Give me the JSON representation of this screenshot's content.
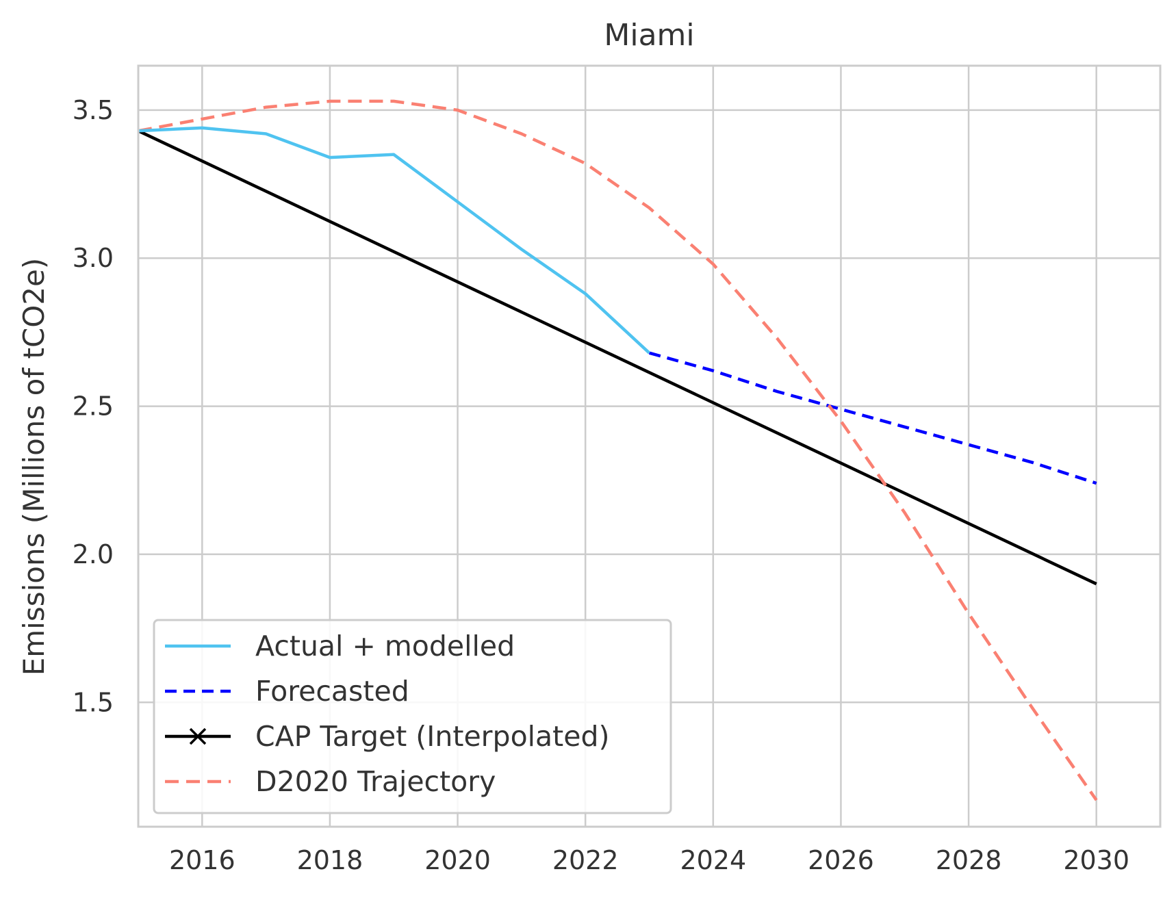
{
  "chart_data": {
    "type": "line",
    "title": "Miami",
    "xlabel": "",
    "ylabel": "Emissions (Millions of tCO2e)",
    "xlim": [
      2015,
      2031
    ],
    "ylim": [
      1.08,
      3.65
    ],
    "x_ticks": [
      2016,
      2018,
      2020,
      2022,
      2024,
      2026,
      2028,
      2030
    ],
    "y_ticks": [
      1.5,
      2.0,
      2.5,
      3.0,
      3.5
    ],
    "x_tick_labels": [
      "2016",
      "2018",
      "2020",
      "2022",
      "2024",
      "2026",
      "2028",
      "2030"
    ],
    "y_tick_labels": [
      "1.5",
      "2.0",
      "2.5",
      "3.0",
      "3.5"
    ],
    "grid": true,
    "legend_position": "lower-left",
    "series": [
      {
        "name": "Actual + modelled",
        "color": "#4fc3f0",
        "dash": "solid",
        "marker": "none",
        "x": [
          2015,
          2016,
          2017,
          2018,
          2019,
          2020,
          2021,
          2022,
          2023
        ],
        "y": [
          3.43,
          3.44,
          3.42,
          3.34,
          3.35,
          3.19,
          3.03,
          2.88,
          2.68
        ]
      },
      {
        "name": "Forecasted",
        "color": "#0000ff",
        "dash": "dashed",
        "marker": "none",
        "x": [
          2023,
          2024,
          2025,
          2026,
          2027,
          2028,
          2029,
          2030
        ],
        "y": [
          2.68,
          2.62,
          2.55,
          2.49,
          2.43,
          2.37,
          2.31,
          2.24
        ]
      },
      {
        "name": "CAP Target (Interpolated)",
        "color": "#000000",
        "dash": "solid",
        "marker": "x",
        "x": [
          2015,
          2030
        ],
        "y": [
          3.43,
          1.9
        ]
      },
      {
        "name": "D2020 Trajectory",
        "color": "#fa8072",
        "dash": "dashed",
        "marker": "none",
        "x": [
          2015,
          2016,
          2017,
          2018,
          2019,
          2020,
          2021,
          2022,
          2023,
          2024,
          2025,
          2026,
          2027,
          2028,
          2029,
          2030
        ],
        "y": [
          3.43,
          3.47,
          3.51,
          3.53,
          3.53,
          3.5,
          3.42,
          3.32,
          3.17,
          2.98,
          2.73,
          2.45,
          2.14,
          1.8,
          1.48,
          1.17
        ]
      }
    ]
  }
}
